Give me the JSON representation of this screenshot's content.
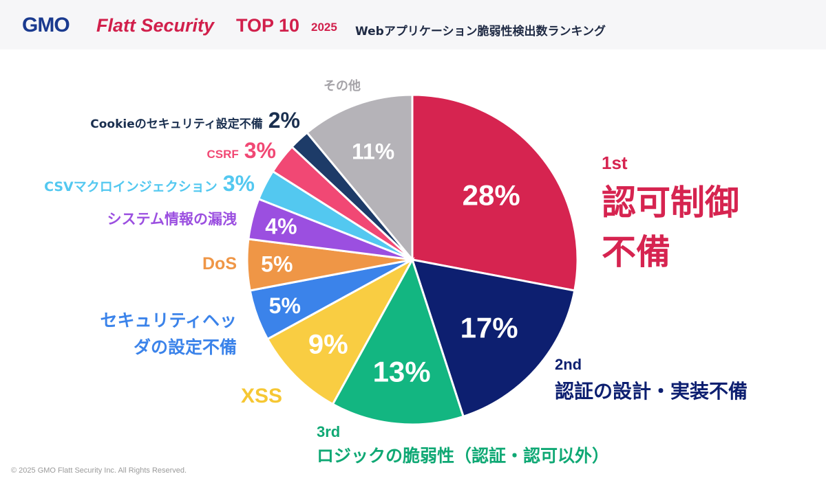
{
  "header": {
    "brand_gmo": "GMO",
    "brand_flatt": "Flatt Security",
    "top10": "TOP 10",
    "year": "2025",
    "subtitle": "Webアプリケーション脆弱性検出数ランキング"
  },
  "chart_data": {
    "type": "pie",
    "title": "Webアプリケーション脆弱性検出数ランキング",
    "start": "12 o'clock, clockwise",
    "unit": "%",
    "slices": [
      {
        "label": "認可制御不備",
        "value": 28,
        "pct_label": "28%",
        "rank": "1st",
        "color": "#d62450"
      },
      {
        "label": "認証の設計・実装不備",
        "value": 17,
        "pct_label": "17%",
        "rank": "2nd",
        "color": "#0d1f70"
      },
      {
        "label": "ロジックの脆弱性（認証・認可以外）",
        "value": 13,
        "pct_label": "13%",
        "rank": "3rd",
        "color": "#13b681"
      },
      {
        "label": "XSS",
        "value": 9,
        "pct_label": "9%",
        "color": "#f9cd42"
      },
      {
        "label": "セキュリティヘッダの設定不備",
        "value": 5,
        "pct_label": "5%",
        "color": "#3b83ea"
      },
      {
        "label": "DoS",
        "value": 5,
        "pct_label": "5%",
        "color": "#ef9646"
      },
      {
        "label": "システム情報の漏洩",
        "value": 4,
        "pct_label": "4%",
        "color": "#9b4fe0"
      },
      {
        "label": "CSVマクロインジェクション",
        "value": 3,
        "pct_label": "3%",
        "color": "#53c8f0"
      },
      {
        "label": "CSRF",
        "value": 3,
        "pct_label": "3%",
        "color": "#f14874"
      },
      {
        "label": "Cookieのセキュリティ設定不備",
        "value": 2,
        "pct_label": "2%",
        "color": "#1d3b68"
      },
      {
        "label": "その他",
        "value": 11,
        "pct_label": "11%",
        "color": "#b5b3b8"
      }
    ]
  },
  "footer": {
    "copyright": "© 2025 GMO Flatt Security Inc. All Rights Reserved."
  }
}
